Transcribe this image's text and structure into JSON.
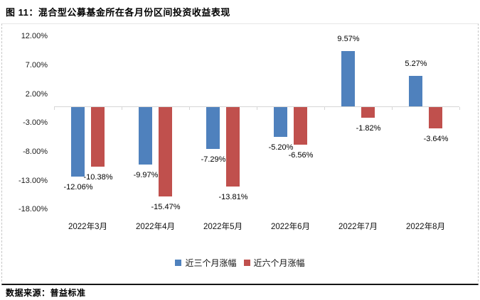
{
  "title": "图 11：混合型公募基金所在各月份区间投资收益表现",
  "footer": "数据来源：普益标准",
  "colors": {
    "series_blue": "#4F81BD",
    "series_red": "#C0504D",
    "axis_line": "#D6D6D6",
    "bottom_rule": "#151515"
  },
  "chart_data": {
    "type": "bar",
    "title": "图 11：混合型公募基金所在各月份区间投资收益表现",
    "categories": [
      "2022年3月",
      "2022年4月",
      "2022年5月",
      "2022年6月",
      "2022年7月",
      "2022年8月"
    ],
    "series": [
      {
        "name": "近三个月涨幅",
        "color": "#4F81BD",
        "values": [
          -12.06,
          -9.97,
          -7.29,
          -5.2,
          9.57,
          5.27
        ],
        "labels": [
          "-12.06%",
          "-9.97%",
          "-7.29%",
          "-5.20%",
          "9.57%",
          "5.27%"
        ]
      },
      {
        "name": "近六个月涨幅",
        "color": "#C0504D",
        "values": [
          -10.38,
          -15.47,
          -13.81,
          -6.56,
          -1.82,
          -3.64
        ],
        "labels": [
          "-10.38%",
          "-15.47%",
          "-13.81%",
          "-6.56%",
          "-1.82%",
          "-3.64%"
        ]
      }
    ],
    "y_axis": {
      "tick_labels": [
        "12.00%",
        "7.00%",
        "2.00%",
        "-3.00%",
        "-8.00%",
        "-13.00%",
        "-18.00%"
      ],
      "tick_values": [
        12,
        7,
        2,
        -3,
        -8,
        -13,
        -18
      ],
      "min": -18,
      "max": 12,
      "unit": "%"
    },
    "xlabel": "",
    "ylabel": "",
    "grid": false,
    "legend_position": "bottom",
    "data_labels": true
  }
}
